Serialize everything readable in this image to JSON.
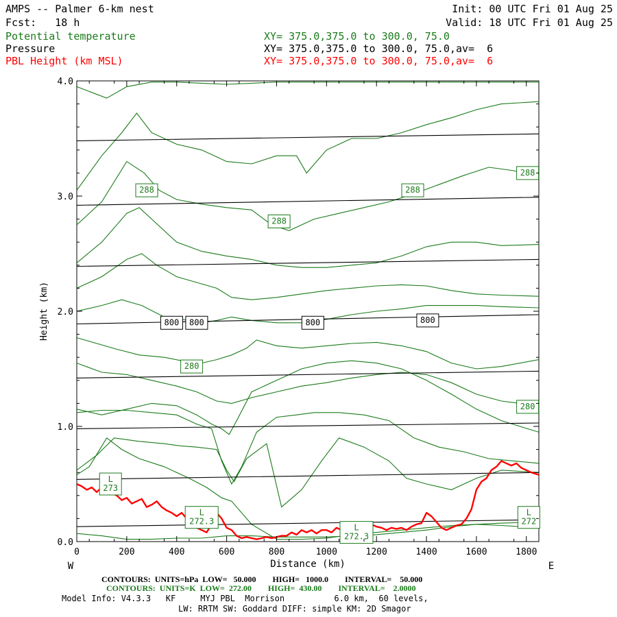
{
  "header": {
    "title": "AMPS -- Palmer 6-km nest",
    "fcst": "Fcst:   18 h",
    "init": "Init: 00 UTC Fri 01 Aug 25",
    "valid": "Valid: 18 UTC Fri 01 Aug 25",
    "field1_name": "Potential temperature",
    "field1_xy": "XY= 375.0,375.0 to 300.0, 75.0",
    "field2_name": "Pressure",
    "field2_xy": "XY= 375.0,375.0 to 300.0, 75.0,av=  6",
    "field3_name": "PBL Height (km MSL)",
    "field3_xy": "XY= 375.0,375.0 to 300.0, 75.0,av=  6"
  },
  "footer": {
    "line1": "CONTOURS:  UNITS=hPa  LOW=   50.000        HIGH=   1000.0        INTERVAL=    50.000",
    "line2": "CONTOURS:  UNITS=K  LOW=  272.00        HIGH=  430.00        INTERVAL=    2.0000",
    "line3": "Model Info: V4.3.3   KF     MYJ PBL  Morrison          6.0 km,  60 levels,",
    "line4": "LW: RRTM SW: Goddard DIFF: simple KM: 2D Smagor"
  },
  "colors": {
    "theta": "#1a7a1a",
    "pressure": "#000000",
    "pbl": "#ff0000"
  },
  "chart_data": {
    "type": "line",
    "xlabel": "Distance (km)",
    "ylabel": "Height (km)",
    "xlim": [
      0,
      1850
    ],
    "ylim": [
      0.0,
      4.0
    ],
    "x_ticks": [
      "0",
      "200",
      "400",
      "600",
      "800",
      "1000",
      "1200",
      "1400",
      "1600",
      "1800"
    ],
    "x_tick_values": [
      0,
      200,
      400,
      600,
      800,
      1000,
      1200,
      1400,
      1600,
      1800
    ],
    "y_ticks": [
      "0.0",
      "1.0",
      "2.0",
      "3.0",
      "4.0"
    ],
    "y_tick_values": [
      0,
      1,
      2,
      3,
      4
    ],
    "x_end_left": "W",
    "x_end_right": "E",
    "grid": false,
    "pressure_isobars": [
      {
        "x": [
          0,
          1850
        ],
        "y": [
          0.13,
          0.19
        ]
      },
      {
        "x": [
          0,
          1850
        ],
        "y": [
          0.54,
          0.6
        ]
      },
      {
        "x": [
          0,
          1850
        ],
        "y": [
          0.98,
          1.03
        ]
      },
      {
        "x": [
          0,
          1850
        ],
        "y": [
          1.42,
          1.48
        ]
      },
      {
        "x": [
          0,
          1850
        ],
        "y": [
          1.89,
          1.97
        ]
      },
      {
        "x": [
          0,
          1850
        ],
        "y": [
          2.39,
          2.45
        ]
      },
      {
        "x": [
          0,
          1850
        ],
        "y": [
          2.92,
          2.99
        ]
      },
      {
        "x": [
          0,
          1850
        ],
        "y": [
          3.48,
          3.54
        ]
      }
    ],
    "theta_contours": [
      {
        "x": [
          0,
          100,
          200,
          300,
          400,
          500,
          550,
          600,
          700,
          800,
          900,
          1000,
          1100,
          1200,
          1300,
          1400,
          1500,
          1600,
          1700,
          1850
        ],
        "y": [
          0.07,
          0.05,
          0.02,
          0.02,
          0.03,
          0.03,
          0.04,
          0.05,
          0.05,
          0.04,
          0.04,
          0.04,
          0.05,
          0.06,
          0.08,
          0.1,
          0.13,
          0.15,
          0.14,
          0.12
        ]
      },
      {
        "x": [
          0,
          50,
          120,
          180,
          250,
          350,
          450,
          520,
          580,
          620,
          700,
          800,
          900,
          1000,
          1100,
          1200,
          1300,
          1400,
          1500,
          1600,
          1700,
          1850
        ],
        "y": [
          0.58,
          0.65,
          0.9,
          0.8,
          0.72,
          0.65,
          0.55,
          0.47,
          0.38,
          0.35,
          0.15,
          0.02,
          0.02,
          0.03,
          0.06,
          0.08,
          0.1,
          0.12,
          0.14,
          0.15,
          0.16,
          0.17
        ]
      },
      {
        "x": [
          0,
          80,
          150,
          250,
          350,
          420,
          480,
          560,
          600,
          630,
          680,
          760,
          820,
          900,
          980,
          1050,
          1150,
          1250,
          1320,
          1400,
          1500,
          1600,
          1700,
          1850
        ],
        "y": [
          0.62,
          0.75,
          0.9,
          0.87,
          0.85,
          0.83,
          0.82,
          0.8,
          0.62,
          0.52,
          0.72,
          0.85,
          0.3,
          0.45,
          0.7,
          0.9,
          0.82,
          0.7,
          0.55,
          0.5,
          0.45,
          0.55,
          0.62,
          0.6
        ]
      },
      {
        "x": [
          0,
          100,
          200,
          300,
          400,
          480,
          540,
          580,
          620,
          660,
          720,
          800,
          880,
          950,
          1050,
          1150,
          1250,
          1350,
          1450,
          1550,
          1650,
          1750,
          1850
        ],
        "y": [
          1.12,
          1.14,
          1.14,
          1.12,
          1.1,
          1.02,
          0.98,
          0.7,
          0.5,
          0.65,
          0.95,
          1.08,
          1.1,
          1.12,
          1.12,
          1.1,
          1.05,
          0.9,
          0.82,
          0.78,
          0.72,
          0.7,
          0.68
        ]
      },
      {
        "x": [
          0,
          100,
          200,
          300,
          400,
          480,
          540,
          580,
          610,
          640,
          700,
          800,
          900,
          1000,
          1100,
          1200,
          1300,
          1400,
          1500,
          1600,
          1700,
          1850
        ],
        "y": [
          1.15,
          1.1,
          1.15,
          1.2,
          1.18,
          1.1,
          1.02,
          0.98,
          0.93,
          1.05,
          1.3,
          1.4,
          1.5,
          1.55,
          1.57,
          1.55,
          1.5,
          1.4,
          1.28,
          1.15,
          1.05,
          0.95
        ]
      },
      {
        "x": [
          0,
          100,
          200,
          300,
          400,
          480,
          560,
          620,
          700,
          800,
          900,
          1000,
          1100,
          1200,
          1300,
          1400,
          1500,
          1600,
          1700,
          1850
        ],
        "y": [
          1.55,
          1.47,
          1.45,
          1.4,
          1.35,
          1.3,
          1.22,
          1.2,
          1.25,
          1.3,
          1.35,
          1.38,
          1.42,
          1.45,
          1.47,
          1.45,
          1.38,
          1.28,
          1.22,
          1.18
        ]
      },
      {
        "x": [
          0,
          80,
          160,
          250,
          350,
          420,
          500,
          560,
          620,
          680,
          720,
          800,
          900,
          1000,
          1100,
          1200,
          1300,
          1400,
          1500,
          1600,
          1700,
          1850
        ],
        "y": [
          1.77,
          1.72,
          1.67,
          1.62,
          1.6,
          1.57,
          1.55,
          1.58,
          1.62,
          1.68,
          1.75,
          1.7,
          1.68,
          1.7,
          1.72,
          1.73,
          1.7,
          1.65,
          1.55,
          1.5,
          1.52,
          1.58
        ]
      },
      {
        "x": [
          0,
          100,
          180,
          260,
          350,
          420,
          500,
          560,
          620,
          700,
          800,
          900,
          1000,
          1100,
          1200,
          1300,
          1400,
          1500,
          1600,
          1700,
          1850
        ],
        "y": [
          2.0,
          2.05,
          2.1,
          2.05,
          1.95,
          1.93,
          1.9,
          1.92,
          1.95,
          1.92,
          1.9,
          1.9,
          1.93,
          1.97,
          2.0,
          2.02,
          2.05,
          2.05,
          2.05,
          2.04,
          2.03
        ]
      },
      {
        "x": [
          0,
          100,
          200,
          260,
          320,
          400,
          480,
          560,
          620,
          700,
          800,
          900,
          1000,
          1100,
          1200,
          1300,
          1400,
          1500,
          1600,
          1700,
          1850
        ],
        "y": [
          2.2,
          2.3,
          2.45,
          2.5,
          2.4,
          2.3,
          2.25,
          2.2,
          2.12,
          2.1,
          2.12,
          2.15,
          2.18,
          2.2,
          2.22,
          2.23,
          2.22,
          2.18,
          2.15,
          2.14,
          2.13
        ]
      },
      {
        "x": [
          0,
          100,
          200,
          250,
          300,
          400,
          500,
          600,
          700,
          800,
          900,
          1000,
          1100,
          1200,
          1300,
          1400,
          1500,
          1600,
          1700,
          1850
        ],
        "y": [
          2.42,
          2.6,
          2.85,
          2.9,
          2.8,
          2.6,
          2.52,
          2.48,
          2.45,
          2.4,
          2.38,
          2.38,
          2.4,
          2.42,
          2.48,
          2.56,
          2.6,
          2.6,
          2.57,
          2.58
        ]
      },
      {
        "x": [
          0,
          100,
          200,
          270,
          330,
          400,
          500,
          600,
          700,
          780,
          850,
          950,
          1050,
          1150,
          1250,
          1350,
          1450,
          1550,
          1650,
          1750,
          1850
        ],
        "y": [
          2.75,
          2.95,
          3.3,
          3.2,
          3.05,
          2.97,
          2.93,
          2.9,
          2.88,
          2.75,
          2.7,
          2.8,
          2.85,
          2.9,
          2.95,
          3.02,
          3.1,
          3.18,
          3.25,
          3.22,
          3.15
        ]
      },
      {
        "x": [
          0,
          100,
          180,
          240,
          300,
          400,
          500,
          600,
          700,
          800,
          880,
          920,
          1000,
          1100,
          1200,
          1300,
          1400,
          1500,
          1600,
          1700,
          1850
        ],
        "y": [
          3.05,
          3.35,
          3.55,
          3.72,
          3.55,
          3.45,
          3.4,
          3.3,
          3.28,
          3.35,
          3.35,
          3.2,
          3.4,
          3.5,
          3.5,
          3.55,
          3.62,
          3.68,
          3.75,
          3.8,
          3.82
        ]
      },
      {
        "x": [
          0,
          60,
          120,
          200,
          300,
          400,
          500,
          600,
          700,
          800,
          900,
          1000,
          1100,
          1200,
          1300,
          1400,
          1500,
          1600,
          1700,
          1850
        ],
        "y": [
          3.95,
          3.9,
          3.85,
          3.95,
          3.99,
          3.99,
          3.98,
          3.97,
          3.98,
          3.99,
          3.99,
          3.99,
          3.99,
          3.99,
          3.99,
          3.99,
          3.99,
          3.99,
          3.99,
          3.99
        ]
      }
    ],
    "pbl_height": {
      "x": [
        0,
        20,
        40,
        60,
        80,
        100,
        120,
        140,
        160,
        180,
        200,
        220,
        240,
        260,
        280,
        300,
        320,
        340,
        360,
        380,
        400,
        420,
        440,
        460,
        480,
        500,
        520,
        540,
        560,
        580,
        600,
        620,
        640,
        660,
        680,
        700,
        720,
        740,
        760,
        780,
        800,
        820,
        840,
        860,
        880,
        900,
        920,
        940,
        960,
        980,
        1000,
        1020,
        1040,
        1060,
        1080,
        1100,
        1120,
        1140,
        1160,
        1180,
        1200,
        1220,
        1240,
        1260,
        1280,
        1300,
        1320,
        1340,
        1360,
        1380,
        1400,
        1420,
        1440,
        1460,
        1480,
        1500,
        1520,
        1540,
        1560,
        1580,
        1600,
        1620,
        1640,
        1660,
        1680,
        1700,
        1720,
        1740,
        1760,
        1780,
        1800,
        1820,
        1850
      ],
      "y": [
        0.5,
        0.48,
        0.45,
        0.47,
        0.43,
        0.47,
        0.52,
        0.42,
        0.4,
        0.36,
        0.38,
        0.33,
        0.35,
        0.37,
        0.3,
        0.32,
        0.35,
        0.3,
        0.27,
        0.25,
        0.22,
        0.25,
        0.2,
        0.17,
        0.12,
        0.1,
        0.08,
        0.15,
        0.25,
        0.2,
        0.12,
        0.1,
        0.05,
        0.03,
        0.04,
        0.03,
        0.02,
        0.03,
        0.04,
        0.03,
        0.04,
        0.05,
        0.05,
        0.08,
        0.06,
        0.1,
        0.08,
        0.1,
        0.07,
        0.1,
        0.1,
        0.08,
        0.12,
        0.1,
        0.08,
        0.11,
        0.1,
        0.13,
        0.12,
        0.15,
        0.13,
        0.12,
        0.1,
        0.12,
        0.11,
        0.12,
        0.1,
        0.13,
        0.15,
        0.16,
        0.25,
        0.22,
        0.17,
        0.12,
        0.1,
        0.12,
        0.14,
        0.15,
        0.2,
        0.28,
        0.45,
        0.52,
        0.55,
        0.62,
        0.65,
        0.7,
        0.68,
        0.66,
        0.68,
        0.64,
        0.62,
        0.6,
        0.58
      ]
    },
    "labels": [
      {
        "text": "288",
        "x": 280,
        "y": 3.05,
        "series": "theta"
      },
      {
        "text": "288",
        "x": 810,
        "y": 2.78,
        "series": "theta"
      },
      {
        "text": "288",
        "x": 1345,
        "y": 3.05,
        "series": "theta"
      },
      {
        "text": "288",
        "x": 1805,
        "y": 3.2,
        "series": "theta"
      },
      {
        "text": "800",
        "x": 380,
        "y": 1.9,
        "series": "pressure"
      },
      {
        "text": "800",
        "x": 480,
        "y": 1.9,
        "series": "pressure"
      },
      {
        "text": "800",
        "x": 945,
        "y": 1.9,
        "series": "pressure"
      },
      {
        "text": "800",
        "x": 1405,
        "y": 1.92,
        "series": "pressure"
      },
      {
        "text": "280",
        "x": 460,
        "y": 1.52,
        "series": "theta"
      },
      {
        "text": "280",
        "x": 1805,
        "y": 1.17,
        "series": "theta"
      },
      {
        "text": "L\n273",
        "x": 135,
        "y": 0.5,
        "series": "theta"
      },
      {
        "text": "L\n272.3",
        "x": 500,
        "y": 0.21,
        "series": "theta"
      },
      {
        "text": "L\n272.3",
        "x": 1120,
        "y": 0.08,
        "series": "theta"
      },
      {
        "text": "L\n272",
        "x": 1810,
        "y": 0.21,
        "series": "theta"
      }
    ]
  }
}
